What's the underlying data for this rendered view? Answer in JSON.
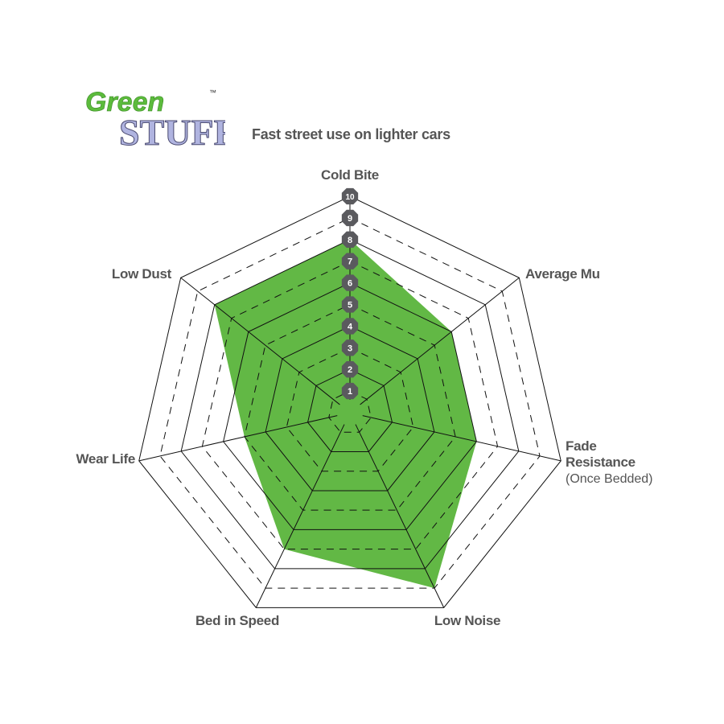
{
  "logo": {
    "line1": "Green",
    "line2": "STUFF",
    "tm": "™"
  },
  "chart_data": {
    "type": "radar",
    "title": "Fast street use on lighter cars",
    "axes": [
      {
        "label": "Cold Bite",
        "sub": ""
      },
      {
        "label": "Average Mu",
        "sub": ""
      },
      {
        "label": "Fade Resistance",
        "sub": "(Once Bedded)"
      },
      {
        "label": "Low Noise",
        "sub": ""
      },
      {
        "label": "Bed in Speed",
        "sub": ""
      },
      {
        "label": "Wear Life",
        "sub": ""
      },
      {
        "label": "Low Dust",
        "sub": ""
      }
    ],
    "values": [
      8,
      6,
      6,
      9,
      7,
      5,
      8
    ],
    "range": [
      0,
      10
    ],
    "ticks": [
      1,
      2,
      3,
      4,
      5,
      6,
      7,
      8,
      9,
      10
    ],
    "fill_color": "#62b845",
    "tick_marker_color": "#5a5a5e"
  }
}
